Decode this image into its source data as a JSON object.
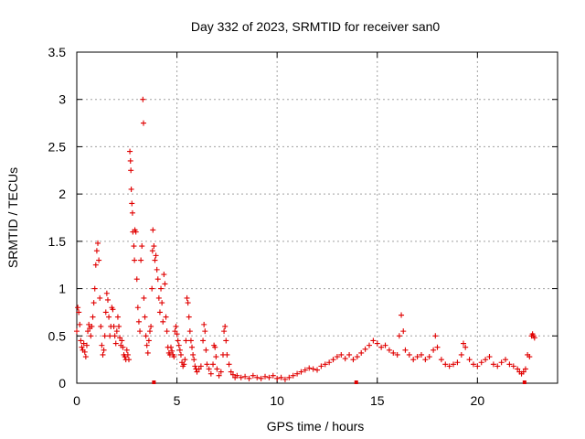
{
  "chart_data": {
    "type": "scatter",
    "title": "Day 332 of 2023, SRMTID for receiver san0",
    "xlabel": "GPS time / hours",
    "ylabel": "SRMTID / TECUs",
    "xlim": [
      0,
      24
    ],
    "ylim": [
      0,
      3.5
    ],
    "x_ticks": [
      0,
      5,
      10,
      15,
      20
    ],
    "x_tick_labels": [
      "0",
      "5",
      "10",
      "15",
      "20"
    ],
    "y_ticks": [
      0,
      0.5,
      1,
      1.5,
      2,
      2.5,
      3,
      3.5
    ],
    "y_tick_labels": [
      "0",
      "0.5",
      "1",
      "1.5",
      "2",
      "2.5",
      "3",
      "3.5"
    ],
    "grid": true,
    "marker": "+",
    "colors": {
      "series": "#e00000",
      "grid": "#a0a0a0",
      "axis": "#000000"
    },
    "series": [
      {
        "name": "SRMTID",
        "points": [
          [
            0.0,
            0.55
          ],
          [
            0.05,
            0.8
          ],
          [
            0.1,
            0.75
          ],
          [
            0.15,
            0.62
          ],
          [
            0.2,
            0.45
          ],
          [
            0.25,
            0.38
          ],
          [
            0.3,
            0.35
          ],
          [
            0.35,
            0.42
          ],
          [
            0.4,
            0.33
          ],
          [
            0.45,
            0.28
          ],
          [
            0.5,
            0.4
          ],
          [
            0.55,
            0.55
          ],
          [
            0.6,
            0.62
          ],
          [
            0.65,
            0.58
          ],
          [
            0.7,
            0.5
          ],
          [
            0.75,
            0.6
          ],
          [
            0.8,
            0.7
          ],
          [
            0.85,
            0.85
          ],
          [
            0.9,
            1.0
          ],
          [
            0.95,
            1.25
          ],
          [
            1.0,
            1.4
          ],
          [
            1.05,
            1.48
          ],
          [
            1.1,
            1.3
          ],
          [
            1.15,
            0.9
          ],
          [
            1.2,
            0.6
          ],
          [
            1.25,
            0.4
          ],
          [
            1.3,
            0.3
          ],
          [
            1.35,
            0.35
          ],
          [
            1.4,
            0.5
          ],
          [
            1.45,
            0.75
          ],
          [
            1.5,
            0.95
          ],
          [
            1.55,
            0.88
          ],
          [
            1.6,
            0.7
          ],
          [
            1.65,
            0.5
          ],
          [
            1.7,
            0.6
          ],
          [
            1.75,
            0.8
          ],
          [
            1.8,
            0.78
          ],
          [
            1.85,
            0.6
          ],
          [
            1.9,
            0.5
          ],
          [
            1.95,
            0.42
          ],
          [
            2.0,
            0.55
          ],
          [
            2.05,
            0.7
          ],
          [
            2.1,
            0.6
          ],
          [
            2.15,
            0.48
          ],
          [
            2.2,
            0.4
          ],
          [
            2.25,
            0.45
          ],
          [
            2.3,
            0.38
          ],
          [
            2.35,
            0.3
          ],
          [
            2.4,
            0.28
          ],
          [
            2.45,
            0.25
          ],
          [
            2.5,
            0.35
          ],
          [
            2.55,
            0.3
          ],
          [
            2.6,
            0.25
          ],
          [
            2.65,
            2.45
          ],
          [
            2.68,
            2.35
          ],
          [
            2.7,
            2.25
          ],
          [
            2.72,
            2.05
          ],
          [
            2.75,
            1.9
          ],
          [
            2.78,
            1.8
          ],
          [
            2.8,
            1.6
          ],
          [
            2.85,
            1.45
          ],
          [
            2.88,
            1.3
          ],
          [
            2.9,
            1.62
          ],
          [
            2.95,
            1.6
          ],
          [
            3.0,
            1.1
          ],
          [
            3.05,
            0.8
          ],
          [
            3.1,
            0.65
          ],
          [
            3.15,
            0.55
          ],
          [
            3.2,
            1.3
          ],
          [
            3.25,
            1.45
          ],
          [
            3.3,
            3.0
          ],
          [
            3.33,
            2.75
          ],
          [
            3.35,
            0.9
          ],
          [
            3.4,
            0.7
          ],
          [
            3.45,
            0.5
          ],
          [
            3.5,
            0.4
          ],
          [
            3.55,
            0.32
          ],
          [
            3.6,
            0.45
          ],
          [
            3.65,
            0.55
          ],
          [
            3.7,
            0.6
          ],
          [
            3.75,
            1.0
          ],
          [
            3.78,
            1.4
          ],
          [
            3.8,
            1.62
          ],
          [
            3.85,
            1.45
          ],
          [
            3.9,
            1.3
          ],
          [
            3.95,
            1.35
          ],
          [
            4.0,
            1.2
          ],
          [
            4.05,
            1.1
          ],
          [
            4.1,
            0.9
          ],
          [
            4.15,
            0.75
          ],
          [
            4.2,
            1.0
          ],
          [
            4.25,
            0.85
          ],
          [
            4.3,
            0.65
          ],
          [
            4.35,
            1.15
          ],
          [
            4.4,
            1.05
          ],
          [
            4.45,
            0.7
          ],
          [
            4.5,
            0.55
          ],
          [
            4.55,
            0.38
          ],
          [
            4.6,
            0.32
          ],
          [
            4.65,
            0.3
          ],
          [
            4.7,
            0.38
          ],
          [
            4.75,
            0.34
          ],
          [
            4.8,
            0.3
          ],
          [
            4.85,
            0.28
          ],
          [
            4.9,
            0.55
          ],
          [
            4.95,
            0.6
          ],
          [
            5.0,
            0.52
          ],
          [
            5.05,
            0.45
          ],
          [
            5.1,
            0.4
          ],
          [
            5.15,
            0.35
          ],
          [
            5.2,
            0.3
          ],
          [
            5.25,
            0.22
          ],
          [
            5.3,
            0.18
          ],
          [
            5.35,
            0.2
          ],
          [
            5.4,
            0.25
          ],
          [
            5.45,
            0.45
          ],
          [
            5.5,
            0.9
          ],
          [
            5.55,
            0.85
          ],
          [
            5.6,
            0.7
          ],
          [
            5.65,
            0.55
          ],
          [
            5.7,
            0.45
          ],
          [
            5.75,
            0.38
          ],
          [
            5.8,
            0.3
          ],
          [
            5.85,
            0.25
          ],
          [
            5.9,
            0.18
          ],
          [
            5.95,
            0.15
          ],
          [
            6.0,
            0.12
          ],
          [
            6.1,
            0.15
          ],
          [
            6.2,
            0.18
          ],
          [
            6.3,
            0.45
          ],
          [
            6.35,
            0.62
          ],
          [
            6.4,
            0.55
          ],
          [
            6.45,
            0.35
          ],
          [
            6.5,
            0.2
          ],
          [
            6.6,
            0.15
          ],
          [
            6.7,
            0.1
          ],
          [
            6.8,
            0.2
          ],
          [
            6.85,
            0.4
          ],
          [
            6.9,
            0.38
          ],
          [
            6.95,
            0.28
          ],
          [
            7.0,
            0.15
          ],
          [
            7.1,
            0.08
          ],
          [
            7.2,
            0.12
          ],
          [
            7.3,
            0.3
          ],
          [
            7.35,
            0.55
          ],
          [
            7.4,
            0.6
          ],
          [
            7.45,
            0.45
          ],
          [
            7.5,
            0.3
          ],
          [
            7.6,
            0.2
          ],
          [
            7.7,
            0.12
          ],
          [
            7.8,
            0.09
          ],
          [
            7.9,
            0.06
          ],
          [
            8.0,
            0.08
          ],
          [
            8.2,
            0.06
          ],
          [
            8.4,
            0.07
          ],
          [
            8.6,
            0.05
          ],
          [
            8.8,
            0.08
          ],
          [
            9.0,
            0.06
          ],
          [
            9.2,
            0.05
          ],
          [
            9.4,
            0.07
          ],
          [
            9.6,
            0.06
          ],
          [
            9.8,
            0.08
          ],
          [
            10.0,
            0.05
          ],
          [
            10.2,
            0.06
          ],
          [
            10.4,
            0.04
          ],
          [
            10.6,
            0.06
          ],
          [
            10.8,
            0.08
          ],
          [
            11.0,
            0.1
          ],
          [
            11.2,
            0.12
          ],
          [
            11.4,
            0.14
          ],
          [
            11.6,
            0.16
          ],
          [
            11.8,
            0.15
          ],
          [
            12.0,
            0.14
          ],
          [
            12.2,
            0.18
          ],
          [
            12.4,
            0.2
          ],
          [
            12.6,
            0.22
          ],
          [
            12.8,
            0.25
          ],
          [
            13.0,
            0.28
          ],
          [
            13.2,
            0.3
          ],
          [
            13.4,
            0.26
          ],
          [
            13.6,
            0.3
          ],
          [
            13.8,
            0.25
          ],
          [
            14.0,
            0.28
          ],
          [
            14.2,
            0.32
          ],
          [
            14.4,
            0.36
          ],
          [
            14.6,
            0.4
          ],
          [
            14.8,
            0.45
          ],
          [
            15.0,
            0.42
          ],
          [
            15.2,
            0.38
          ],
          [
            15.4,
            0.4
          ],
          [
            15.6,
            0.35
          ],
          [
            15.8,
            0.32
          ],
          [
            16.0,
            0.3
          ],
          [
            16.1,
            0.5
          ],
          [
            16.2,
            0.72
          ],
          [
            16.3,
            0.55
          ],
          [
            16.4,
            0.35
          ],
          [
            16.6,
            0.3
          ],
          [
            16.8,
            0.25
          ],
          [
            17.0,
            0.28
          ],
          [
            17.2,
            0.3
          ],
          [
            17.4,
            0.25
          ],
          [
            17.6,
            0.28
          ],
          [
            17.8,
            0.35
          ],
          [
            17.9,
            0.5
          ],
          [
            18.0,
            0.38
          ],
          [
            18.2,
            0.25
          ],
          [
            18.4,
            0.2
          ],
          [
            18.6,
            0.18
          ],
          [
            18.8,
            0.2
          ],
          [
            19.0,
            0.22
          ],
          [
            19.2,
            0.3
          ],
          [
            19.3,
            0.42
          ],
          [
            19.4,
            0.38
          ],
          [
            19.6,
            0.25
          ],
          [
            19.8,
            0.2
          ],
          [
            20.0,
            0.18
          ],
          [
            20.2,
            0.22
          ],
          [
            20.4,
            0.25
          ],
          [
            20.6,
            0.28
          ],
          [
            20.8,
            0.2
          ],
          [
            21.0,
            0.18
          ],
          [
            21.2,
            0.22
          ],
          [
            21.4,
            0.25
          ],
          [
            21.6,
            0.2
          ],
          [
            21.8,
            0.18
          ],
          [
            22.0,
            0.15
          ],
          [
            22.1,
            0.12
          ],
          [
            22.2,
            0.1
          ],
          [
            22.3,
            0.12
          ],
          [
            22.4,
            0.15
          ],
          [
            22.5,
            0.3
          ],
          [
            22.6,
            0.28
          ],
          [
            22.7,
            0.5
          ],
          [
            22.75,
            0.52
          ],
          [
            22.8,
            0.5
          ],
          [
            22.85,
            0.48
          ]
        ]
      }
    ],
    "gap_markers": [
      3.85,
      13.95,
      22.35
    ]
  }
}
